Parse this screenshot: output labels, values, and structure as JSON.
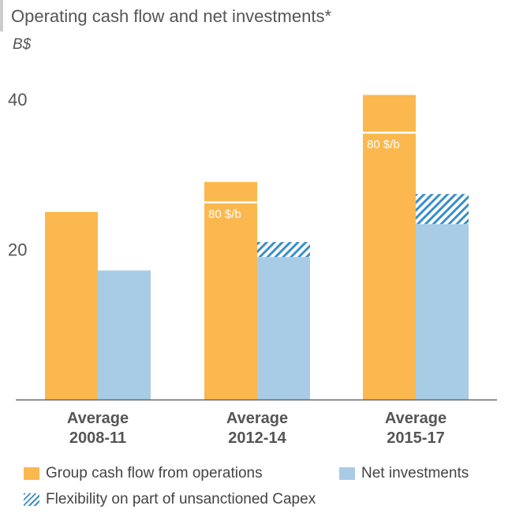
{
  "chart_data": {
    "type": "bar",
    "title": "Operating cash flow and net investments*",
    "ylabel": "B$",
    "ylim": [
      0,
      40
    ],
    "yticks": [
      20,
      40
    ],
    "grid": false,
    "categories": [
      "Average\n2008-11",
      "Average\n2012-14",
      "Average\n2015-17"
    ],
    "category_lines": [
      [
        "Average",
        "2008-11"
      ],
      [
        "Average",
        "2012-14"
      ],
      [
        "Average",
        "2015-17"
      ]
    ],
    "series": [
      {
        "name": "Group cash flow from operations",
        "color": "#FBB84E",
        "values": [
          25,
          29,
          40.6
        ]
      },
      {
        "name": "Net investments",
        "color": "#A8CCE6",
        "values": [
          17.2,
          19,
          23.4
        ]
      },
      {
        "name": "Flexibility on part of unsanctioned Capex",
        "color": "#3A8FC7",
        "pattern": "hatch",
        "stacked_on": "Net investments",
        "values": [
          0,
          2,
          4
        ]
      }
    ],
    "annotations": [
      {
        "category": "Average\n2012-14",
        "series": "Group cash flow from operations",
        "text": "80 $/b",
        "value": 26.3
      },
      {
        "category": "Average\n2015-17",
        "series": "Group cash flow from operations",
        "text": "80 $/b",
        "value": 35.6
      }
    ],
    "legend_position": "bottom"
  }
}
